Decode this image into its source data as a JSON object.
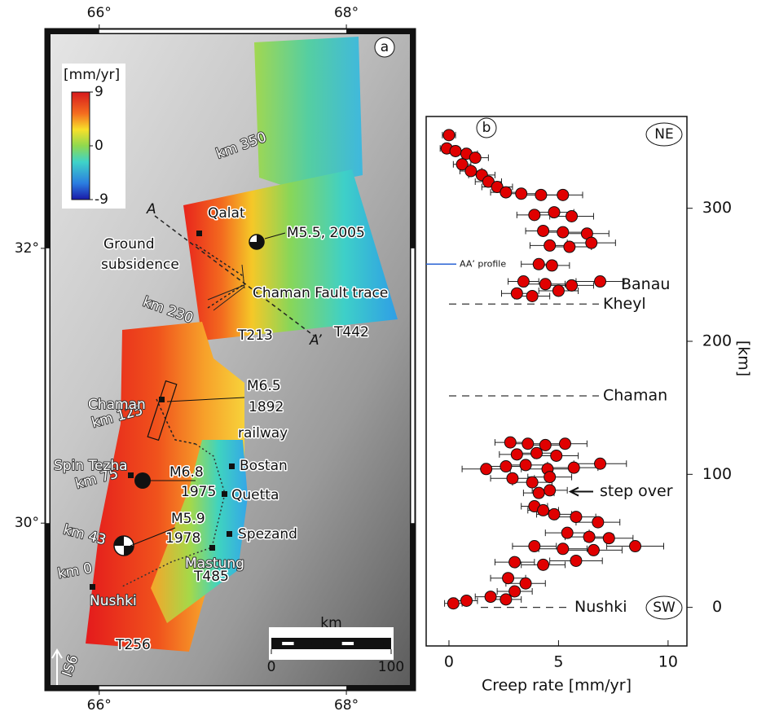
{
  "chart_data": [
    {
      "type": "map",
      "panel_label": "a",
      "xlim": [
        65.56,
        68.56
      ],
      "ylim": [
        28.78,
        33.6
      ],
      "xticks": [
        {
          "value": 66,
          "label": "66°"
        },
        {
          "value": 68,
          "label": "68°"
        }
      ],
      "yticks": [
        {
          "value": 30,
          "label": "30°"
        },
        {
          "value": 32,
          "label": "32°"
        }
      ],
      "colorbar": {
        "label": "[mm/yr]",
        "clim": [
          -9,
          9
        ],
        "ticks": [
          9,
          0,
          -9
        ]
      },
      "scale_bar": {
        "unit": "km",
        "ticks": [
          0,
          100
        ]
      },
      "labels": {
        "qalat": "Qalat",
        "m55": "M5.5, 2005",
        "ground": "Ground",
        "subsidence": "subsidence",
        "fault_trace": "Chaman Fault trace",
        "km350": "km 350",
        "km230": "km 230",
        "km125": "km 125",
        "km75": "km 75",
        "km43": "km 43",
        "km0": "km 0",
        "a_start": "A",
        "a_end": "A’",
        "t213": "T213",
        "t442": "T442",
        "t485": "T485",
        "t256": "T256",
        "m65": "M6.5",
        "y1892": "1892",
        "chaman": "Chaman",
        "railway": "railway",
        "spin_tezha": "Spin Tezha",
        "m68": "M6.8",
        "y1975": "1975",
        "bostan": "Bostan",
        "quetta": "Quetta",
        "m59": "M5.9",
        "y1978": "1978",
        "spezand": "Spezand",
        "mastung": "Mastung",
        "nushki": "Nushki",
        "is6": "IS6"
      }
    },
    {
      "type": "scatter",
      "panel_label": "b",
      "color": "#e00000",
      "xlabel": "Creep rate [mm/yr]",
      "ylabel": "[km]",
      "xlim": [
        -1.04,
        10.86
      ],
      "ylim": [
        -29,
        369
      ],
      "xticks": [
        0,
        5,
        10
      ],
      "yticks": [
        0,
        100,
        200,
        300
      ],
      "end_labels": {
        "top": "NE",
        "bottom": "SW"
      },
      "x": [
        0,
        -0.1,
        0.3,
        0.8,
        1.2,
        0.6,
        1.0,
        1.5,
        1.8,
        2.2,
        2.6,
        3.3,
        4.2,
        5.2,
        3.9,
        4.8,
        5.6,
        4.3,
        5.2,
        6.3,
        4.6,
        5.5,
        6.5,
        4.1,
        4.7,
        3.4,
        4.4,
        5.6,
        6.9,
        3.1,
        3.8,
        5.0,
        2.8,
        3.6,
        4.4,
        5.3,
        3.1,
        4.0,
        4.9,
        1.7,
        2.6,
        3.5,
        4.5,
        5.7,
        6.9,
        2.9,
        3.8,
        4.6,
        4.1,
        4.6,
        3.9,
        4.3,
        4.8,
        5.8,
        6.8,
        5.4,
        6.4,
        7.3,
        3.9,
        5.2,
        6.6,
        8.5,
        3.0,
        4.3,
        5.8,
        2.7,
        3.5,
        3.0,
        1.9,
        0.8,
        0.2,
        2.6
      ],
      "values": [
        355,
        345,
        343,
        341,
        338,
        333,
        328,
        325,
        320,
        316,
        312,
        311,
        310,
        310,
        295,
        297,
        294,
        283,
        282,
        281,
        272,
        271,
        274,
        258,
        257,
        245,
        243,
        242,
        245,
        236,
        234,
        238,
        124,
        123,
        122,
        123,
        115,
        116,
        114,
        104,
        106,
        107,
        104,
        105,
        108,
        97,
        94,
        98,
        86,
        88,
        76,
        73,
        70,
        68,
        64,
        56,
        53,
        52,
        46,
        44,
        43,
        46,
        34,
        32,
        35,
        22,
        18,
        12,
        8,
        5,
        3,
        6
      ],
      "xerr": [
        0.3,
        0.3,
        0.4,
        0.5,
        0.6,
        0.4,
        0.5,
        0.6,
        0.6,
        0.7,
        0.7,
        0.8,
        0.9,
        0.9,
        0.8,
        0.9,
        1.0,
        0.8,
        1.0,
        1.0,
        0.9,
        1.0,
        1.1,
        0.8,
        0.8,
        0.7,
        0.9,
        1.0,
        1.1,
        0.7,
        0.8,
        0.9,
        0.7,
        0.8,
        0.9,
        1.0,
        0.8,
        0.9,
        1.0,
        1.1,
        1.0,
        1.0,
        1.2,
        1.1,
        1.2,
        1.0,
        0.9,
        1.0,
        0.7,
        0.8,
        0.6,
        0.7,
        0.8,
        0.9,
        1.0,
        1.0,
        1.1,
        1.1,
        1.0,
        1.1,
        1.3,
        1.3,
        0.9,
        1.0,
        1.2,
        0.8,
        0.9,
        0.8,
        0.7,
        0.5,
        0.4,
        0.7
      ],
      "reference_lines": [
        {
          "value": 228,
          "label": [
            "Banau",
            "Kheyl"
          ]
        },
        {
          "value": 159,
          "label": [
            "Chaman"
          ]
        },
        {
          "value": 0,
          "label": [
            "Nushki"
          ]
        }
      ],
      "profile_line": {
        "value": 258,
        "label": "AA’ profile",
        "color": "#2a63d4"
      },
      "arrow_annotation": {
        "value": 87,
        "label": "step over"
      }
    }
  ]
}
